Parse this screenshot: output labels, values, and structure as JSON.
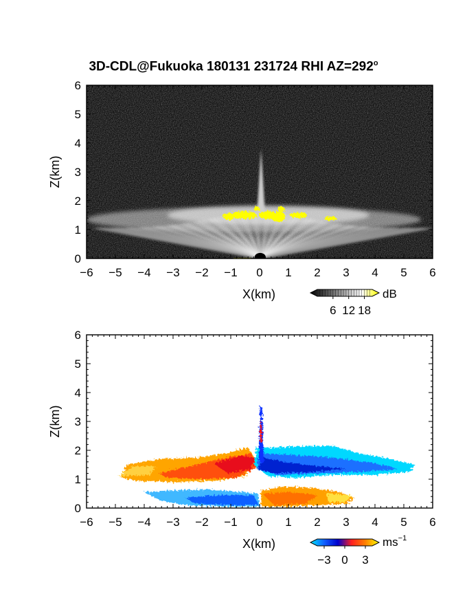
{
  "title": "3D-CDL@Fukuoka 180131 231724 RHI AZ=292",
  "title_degree": "o",
  "chart_data": [
    {
      "type": "heatmap",
      "panel": "top",
      "quantity": "backscatter intensity",
      "xlabel": "X(km)",
      "ylabel": "Z(km)",
      "xlim": [
        -6,
        6
      ],
      "ylim": [
        0,
        6
      ],
      "x_ticks": [
        -6,
        -5,
        -4,
        -3,
        -2,
        -1,
        0,
        1,
        2,
        3,
        4,
        5,
        6
      ],
      "y_ticks": [
        0,
        1,
        2,
        3,
        4,
        5,
        6
      ],
      "colorbar": {
        "unit": "dB",
        "ticks": [
          6,
          12,
          18
        ],
        "range": [
          0,
          21
        ],
        "colors": [
          "#000000",
          "#555555",
          "#aaaaaa",
          "#ffffff",
          "#ffff00"
        ]
      },
      "features": [
        {
          "kind": "fan-shaped echo",
          "x_range": [
            -5.8,
            6.0
          ],
          "z_top": 1.8
        },
        {
          "kind": "vertical spike",
          "x": 0.05,
          "z_top": 3.8
        },
        {
          "kind": "strong echo (>18 dB)",
          "x_range": [
            -1.4,
            2.6
          ],
          "z_range": [
            1.2,
            1.9
          ]
        }
      ]
    },
    {
      "type": "heatmap",
      "panel": "bottom",
      "quantity": "Doppler velocity",
      "xlabel": "X(km)",
      "ylabel": "Z(km)",
      "xlim": [
        -6,
        6
      ],
      "ylim": [
        0,
        6
      ],
      "x_ticks": [
        -6,
        -5,
        -4,
        -3,
        -2,
        -1,
        0,
        1,
        2,
        3,
        4,
        5,
        6
      ],
      "y_ticks": [
        0,
        1,
        2,
        3,
        4,
        5,
        6
      ],
      "colorbar": {
        "unit": "ms",
        "unit_exponent": "−1",
        "ticks": [
          -3,
          0,
          3
        ],
        "tick_labels": [
          "−3",
          "0",
          "3"
        ],
        "range": [
          -4,
          4
        ],
        "colors": [
          "#00e5ff",
          "#1060ff",
          "#0000cc",
          "#ff2020",
          "#ff8000",
          "#ffff00"
        ]
      },
      "features": [
        {
          "kind": "receding flow (positive)",
          "x_range": [
            -4.8,
            -0.3
          ],
          "z_range": [
            1.0,
            1.7
          ],
          "value": 2.5
        },
        {
          "kind": "approaching flow (negative)",
          "x_range": [
            0.0,
            5.4
          ],
          "z_range": [
            1.1,
            2.1
          ],
          "value": -2.5
        },
        {
          "kind": "low-level negative",
          "x_range": [
            -4.0,
            0.0
          ],
          "z_range": [
            0.1,
            0.6
          ],
          "value": -2.0
        },
        {
          "kind": "low-level positive",
          "x_range": [
            0.0,
            3.2
          ],
          "z_range": [
            0.1,
            0.7
          ],
          "value": 2.5
        },
        {
          "kind": "vertical spike",
          "x": 0.05,
          "z_top": 3.5
        }
      ]
    }
  ]
}
